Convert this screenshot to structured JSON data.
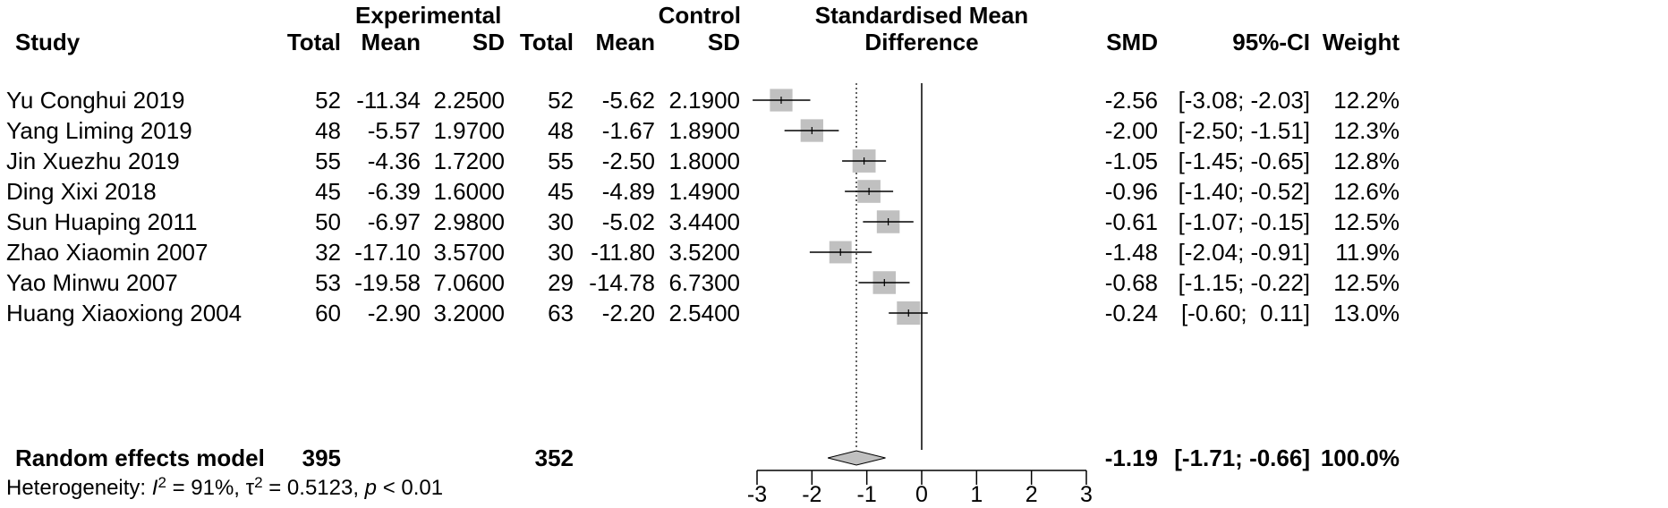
{
  "header": {
    "group1": "Experimental",
    "group2": "Control",
    "plot_title_line1": "Standardised Mean",
    "plot_title_line2": "Difference",
    "col_study": "Study",
    "col_total1": "Total",
    "col_mean1": "Mean",
    "col_sd1": "SD",
    "col_total2": "Total",
    "col_mean2": "Mean",
    "col_sd2": "SD",
    "col_smd": "SMD",
    "col_ci": "95%-CI",
    "col_weight": "Weight"
  },
  "studies": [
    {
      "study": "Yu Conghui 2019",
      "e_total": "52",
      "e_mean": "-11.34",
      "e_sd": "2.2500",
      "c_total": "52",
      "c_mean": "-5.62",
      "c_sd": "2.1900",
      "smd": "-2.56",
      "ci": "[-3.08; -2.03]",
      "weight": "12.2%"
    },
    {
      "study": "Yang Liming 2019",
      "e_total": "48",
      "e_mean": "-5.57",
      "e_sd": "1.9700",
      "c_total": "48",
      "c_mean": "-1.67",
      "c_sd": "1.8900",
      "smd": "-2.00",
      "ci": "[-2.50; -1.51]",
      "weight": "12.3%"
    },
    {
      "study": "Jin Xuezhu 2019",
      "e_total": "55",
      "e_mean": "-4.36",
      "e_sd": "1.7200",
      "c_total": "55",
      "c_mean": "-2.50",
      "c_sd": "1.8000",
      "smd": "-1.05",
      "ci": "[-1.45; -0.65]",
      "weight": "12.8%"
    },
    {
      "study": "Ding Xixi 2018",
      "e_total": "45",
      "e_mean": "-6.39",
      "e_sd": "1.6000",
      "c_total": "45",
      "c_mean": "-4.89",
      "c_sd": "1.4900",
      "smd": "-0.96",
      "ci": "[-1.40; -0.52]",
      "weight": "12.6%"
    },
    {
      "study": "Sun Huaping 2011",
      "e_total": "50",
      "e_mean": "-6.97",
      "e_sd": "2.9800",
      "c_total": "30",
      "c_mean": "-5.02",
      "c_sd": "3.4400",
      "smd": "-0.61",
      "ci": "[-1.07; -0.15]",
      "weight": "12.5%"
    },
    {
      "study": "Zhao Xiaomin 2007",
      "e_total": "32",
      "e_mean": "-17.10",
      "e_sd": "3.5700",
      "c_total": "30",
      "c_mean": "-11.80",
      "c_sd": "3.5200",
      "smd": "-1.48",
      "ci": "[-2.04; -0.91]",
      "weight": "11.9%"
    },
    {
      "study": "Yao Minwu 2007",
      "e_total": "53",
      "e_mean": "-19.58",
      "e_sd": "7.0600",
      "c_total": "29",
      "c_mean": "-14.78",
      "c_sd": "6.7300",
      "smd": "-0.68",
      "ci": "[-1.15; -0.22]",
      "weight": "12.5%"
    },
    {
      "study": "Huang Xiaoxiong 2004",
      "e_total": "60",
      "e_mean": "-2.90",
      "e_sd": "3.2000",
      "c_total": "63",
      "c_mean": "-2.20",
      "c_sd": "2.5400",
      "smd": "-0.24",
      "ci": "[-0.60;  0.11]",
      "weight": "13.0%"
    }
  ],
  "summary": {
    "label": "Random effects model",
    "e_total": "395",
    "c_total": "352",
    "smd": "-1.19",
    "ci": "[-1.71; -0.66]",
    "weight": "100.0%",
    "het_prefix": "Heterogeneity: ",
    "het_I": "I",
    "het_sup1": "2",
    "het_mid1": " = 91%, τ",
    "het_sup2": "2",
    "het_mid2": " = 0.5123, ",
    "het_p": "p",
    "het_end": " < 0.01"
  },
  "chart_data": {
    "type": "forest",
    "xlim": [
      -3,
      3
    ],
    "xticks": [
      -3,
      -2,
      -1,
      0,
      1,
      2,
      3
    ],
    "reference_line": 0,
    "pooled_line": -1.19,
    "box_color": "#c0c0c0",
    "diamond_color": "#c0c0c0",
    "points": [
      {
        "study": "Yu Conghui 2019",
        "smd": -2.56,
        "lo": -3.08,
        "hi": -2.03,
        "weight": 12.2
      },
      {
        "study": "Yang Liming 2019",
        "smd": -2.0,
        "lo": -2.5,
        "hi": -1.51,
        "weight": 12.3
      },
      {
        "study": "Jin Xuezhu 2019",
        "smd": -1.05,
        "lo": -1.45,
        "hi": -0.65,
        "weight": 12.8
      },
      {
        "study": "Ding Xixi 2018",
        "smd": -0.96,
        "lo": -1.4,
        "hi": -0.52,
        "weight": 12.6
      },
      {
        "study": "Sun Huaping 2011",
        "smd": -0.61,
        "lo": -1.07,
        "hi": -0.15,
        "weight": 12.5
      },
      {
        "study": "Zhao Xiaomin 2007",
        "smd": -1.48,
        "lo": -2.04,
        "hi": -0.91,
        "weight": 11.9
      },
      {
        "study": "Yao Minwu 2007",
        "smd": -0.68,
        "lo": -1.15,
        "hi": -0.22,
        "weight": 12.5
      },
      {
        "study": "Huang Xiaoxiong 2004",
        "smd": -0.24,
        "lo": -0.6,
        "hi": 0.11,
        "weight": 13.0
      }
    ],
    "pooled": {
      "smd": -1.19,
      "lo": -1.71,
      "hi": -0.66
    }
  }
}
